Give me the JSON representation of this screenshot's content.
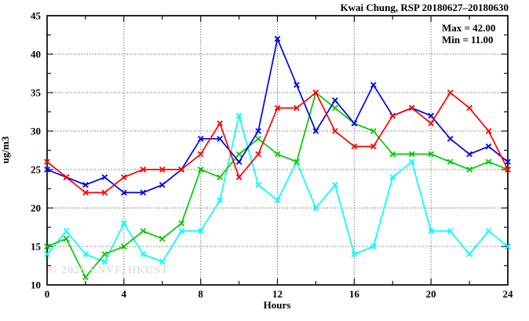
{
  "chart_data": {
    "type": "line",
    "title": "Kwai Chung, RSP 20180627–20180630",
    "xlabel": "Hours",
    "ylabel": "ug/m3",
    "xlim": [
      0,
      24
    ],
    "ylim": [
      10,
      45
    ],
    "x_ticks": [
      0,
      4,
      8,
      12,
      16,
      20,
      24
    ],
    "y_ticks": [
      10,
      15,
      20,
      25,
      30,
      35,
      40,
      45
    ],
    "x_minor_step": 2,
    "y_minor_step": 2.5,
    "grid": "dotted",
    "legend_position": "none",
    "x": [
      0,
      1,
      2,
      3,
      4,
      5,
      6,
      7,
      8,
      9,
      10,
      11,
      12,
      13,
      14,
      15,
      16,
      17,
      18,
      19,
      20,
      21,
      22,
      23,
      24
    ],
    "series": [
      {
        "name": "cyan",
        "color": "#00ffff",
        "values": [
          14,
          17,
          14,
          13,
          18,
          14,
          13,
          17,
          17,
          21,
          32,
          23,
          21,
          26,
          20,
          23,
          14,
          15,
          24,
          26,
          17,
          17,
          14,
          17,
          15
        ]
      },
      {
        "name": "green",
        "color": "#00cc00",
        "values": [
          15,
          16,
          11,
          14,
          15,
          17,
          16,
          18,
          25,
          24,
          27,
          29,
          27,
          26,
          35,
          33,
          31,
          30,
          27,
          27,
          27,
          26,
          25,
          26,
          25
        ]
      },
      {
        "name": "blue",
        "color": "#0000ee",
        "values": [
          25,
          24,
          23,
          24,
          22,
          22,
          23,
          25,
          29,
          29,
          26,
          30,
          42,
          36,
          30,
          34,
          31,
          36,
          32,
          33,
          32,
          29,
          27,
          28,
          26
        ]
      },
      {
        "name": "red",
        "color": "#ff0000",
        "values": [
          26,
          24,
          22,
          22,
          24,
          25,
          25,
          25,
          27,
          31,
          24,
          27,
          33,
          33,
          35,
          30,
          28,
          28,
          32,
          33,
          31,
          35,
          33,
          30,
          25
        ]
      }
    ],
    "annotations": {
      "max_label": "Max = 42.00",
      "min_label": "Min = 11.00"
    },
    "watermark": "© 2026 ENVF, HKUST",
    "colors": {
      "axis": "#111111",
      "grid": "#3a3a3a",
      "background": "#ffffff",
      "watermark": "#d6d6d6"
    }
  }
}
